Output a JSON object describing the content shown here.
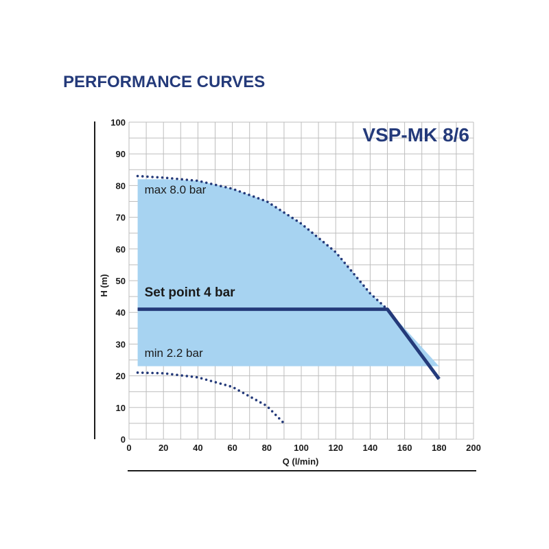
{
  "page": {
    "heading": "PERFORMANCE CURVES"
  },
  "chart_data": {
    "type": "line",
    "title": "VSP-MK 8/6",
    "xlabel": "Q (l/min)",
    "ylabel": "H (m)",
    "xlim": [
      0,
      200
    ],
    "ylim": [
      0,
      100
    ],
    "x_ticks": [
      "0",
      "20",
      "40",
      "60",
      "80",
      "100",
      "120",
      "140",
      "160",
      "180",
      "200"
    ],
    "y_ticks": [
      "0",
      "10",
      "20",
      "30",
      "40",
      "50",
      "60",
      "70",
      "80",
      "90",
      "100"
    ],
    "grid": true,
    "colors": {
      "band": "#a7d3f1",
      "curve": "#243a7a",
      "grid": "#bdbdbd"
    },
    "operating_band": {
      "x": [
        5,
        180
      ],
      "h_min": 23,
      "h_max": 82
    },
    "series": [
      {
        "style": "dotted",
        "x": [
          5,
          20,
          40,
          60,
          80,
          100,
          120,
          140,
          150
        ],
        "y": [
          83,
          82.5,
          81.5,
          79,
          75,
          68,
          59,
          46,
          41
        ]
      },
      {
        "style": "solid",
        "x": [
          5,
          150,
          180
        ],
        "y": [
          41,
          41,
          19
        ]
      },
      {
        "style": "dotted",
        "x": [
          5,
          20,
          40,
          60,
          80,
          90
        ],
        "y": [
          21,
          20.8,
          19.5,
          16.5,
          10.5,
          5
        ]
      }
    ],
    "annotations": [
      {
        "text": "max 8.0 bar",
        "x": 9,
        "y": 77.5
      },
      {
        "text": "Set point 4 bar",
        "x": 9,
        "y": 45
      },
      {
        "text": "min 2.2 bar",
        "x": 9,
        "y": 26
      }
    ]
  }
}
